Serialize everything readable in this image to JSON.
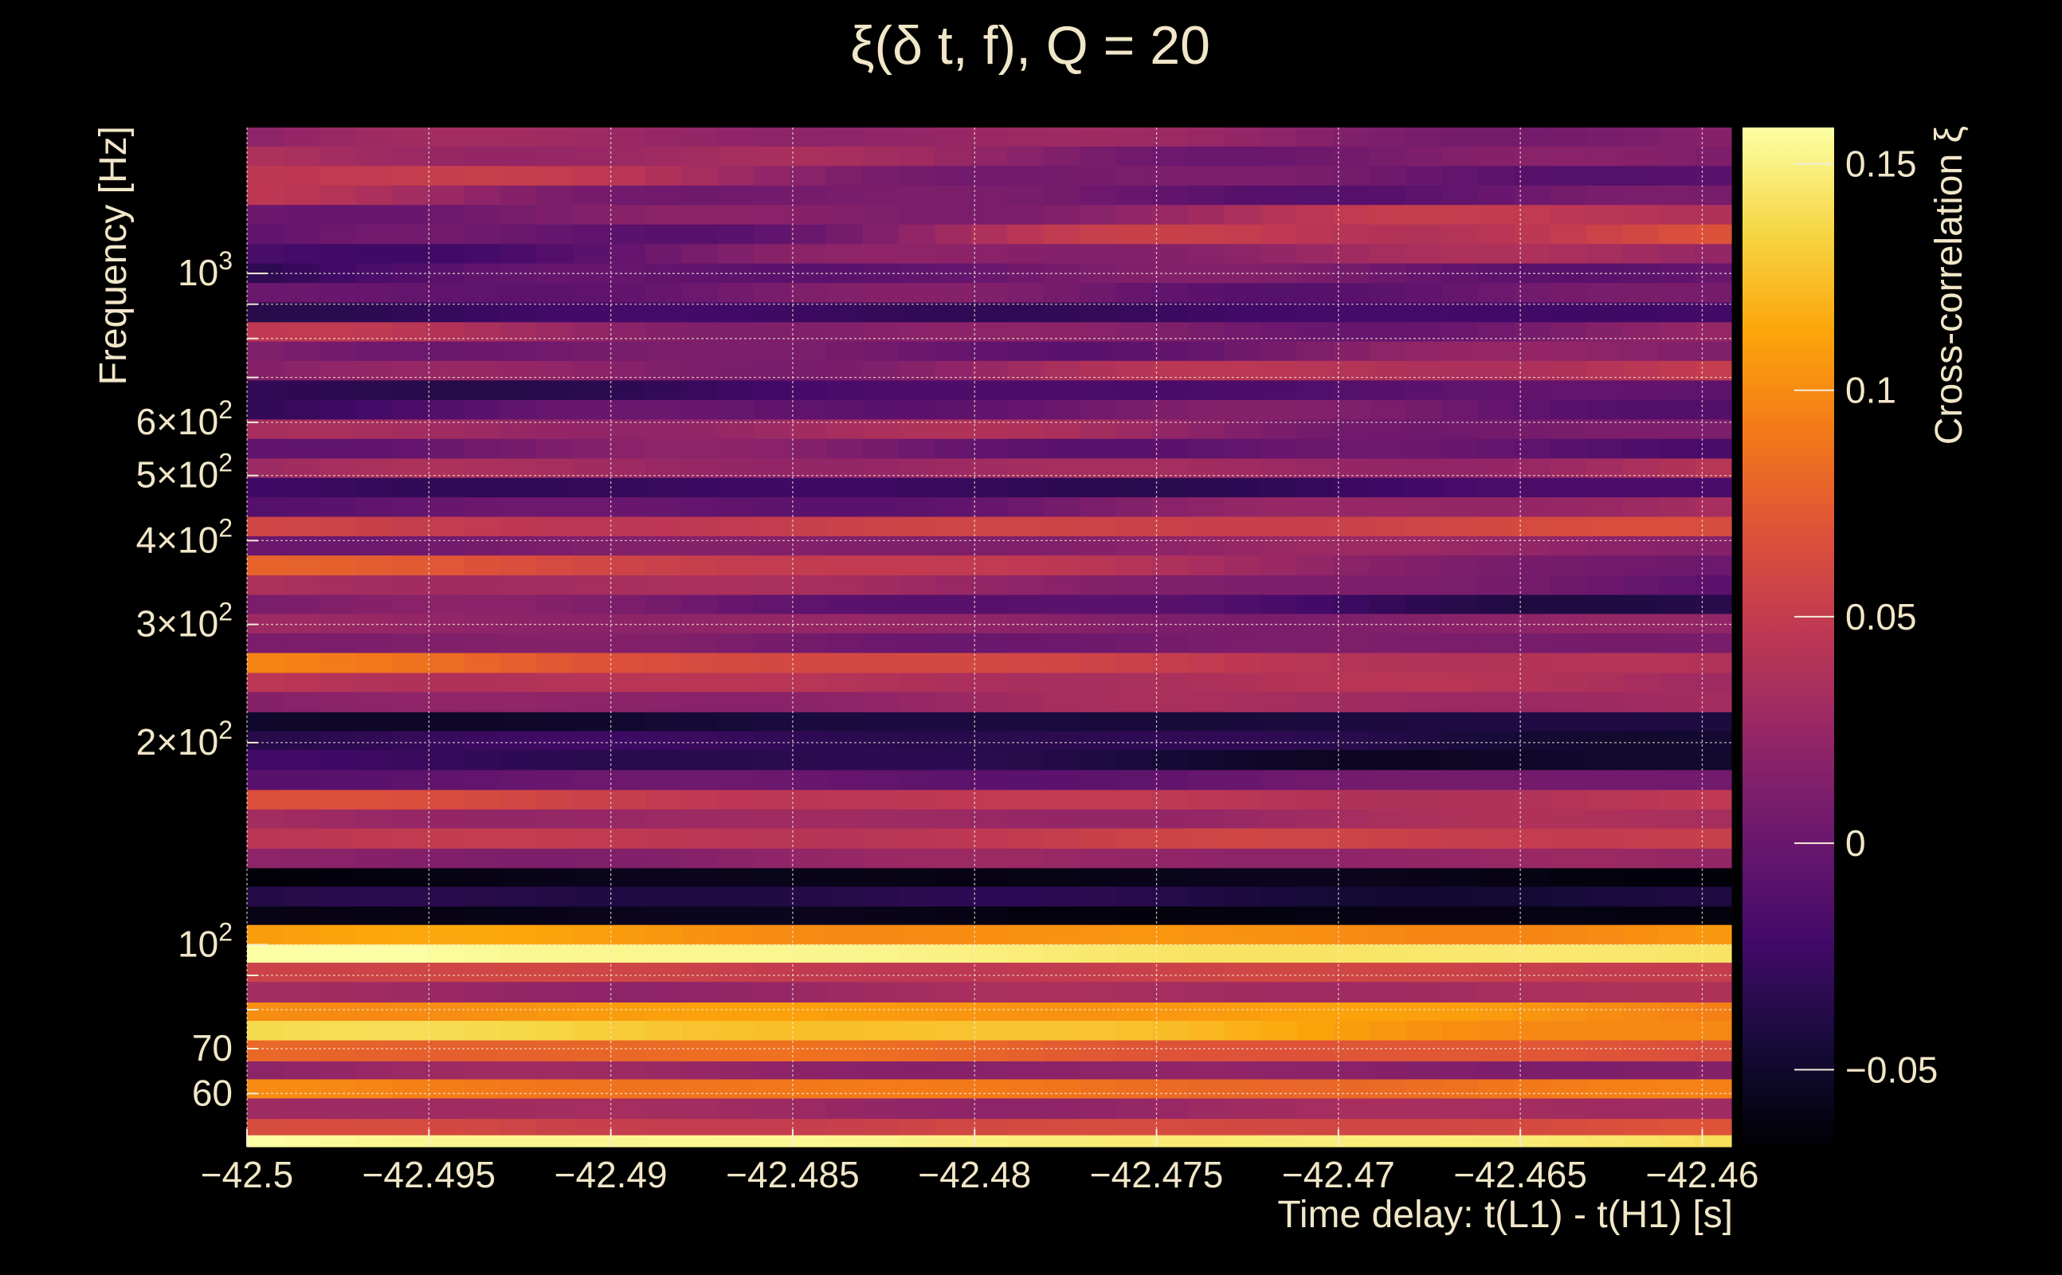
{
  "chart_data": {
    "type": "heatmap",
    "title": "ξ(δ t, f), Q = 20",
    "xlabel": "Time delay: t(L1) - t(H1) [s]",
    "ylabel": "Frequency [Hz]",
    "colorbar_label": "Cross-correlation ξ",
    "xlim": [
      -42.5,
      -42.4592
    ],
    "ylim": [
      50,
      1650
    ],
    "yscale": "log",
    "clim": [
      -0.067,
      0.158
    ],
    "colormap": "inferno",
    "x_ticks": [
      -42.5,
      -42.495,
      -42.49,
      -42.485,
      -42.48,
      -42.475,
      -42.47,
      -42.465,
      -42.46
    ],
    "x_tick_labels": [
      "−42.5",
      "−42.495",
      "−42.49",
      "−42.485",
      "−42.48",
      "−42.475",
      "−42.47",
      "−42.465",
      "−42.46"
    ],
    "y_ticks": [
      {
        "value": 60,
        "base": "60",
        "exp": ""
      },
      {
        "value": 70,
        "base": "70",
        "exp": ""
      },
      {
        "value": 100,
        "base": "10",
        "exp": "2"
      },
      {
        "value": 200,
        "base": "2×10",
        "exp": "2"
      },
      {
        "value": 300,
        "base": "3×10",
        "exp": "2"
      },
      {
        "value": 400,
        "base": "4×10",
        "exp": "2"
      },
      {
        "value": 500,
        "base": "5×10",
        "exp": "2"
      },
      {
        "value": 600,
        "base": "6×10",
        "exp": "2"
      },
      {
        "value": 1000,
        "base": "10",
        "exp": "3"
      }
    ],
    "colorbar_ticks": [
      -0.05,
      0,
      0.05,
      0.1,
      0.15
    ],
    "colorbar_tick_labels": [
      "−0.05",
      "0",
      "0.05",
      "0.1",
      "0.15"
    ],
    "grid": true,
    "columns": 41,
    "bands": [
      {
        "f": [
          1546,
          1650
        ],
        "base": 0.02,
        "slope": 0.0,
        "wave": 0.015
      },
      {
        "f": [
          1446,
          1546
        ],
        "base": 0.025,
        "slope": -0.01,
        "wave": 0.02
      },
      {
        "f": [
          1352,
          1446
        ],
        "base": 0.045,
        "slope": -0.05,
        "wave": 0.02
      },
      {
        "f": [
          1265,
          1352
        ],
        "base": 0.03,
        "slope": -0.04,
        "wave": 0.02
      },
      {
        "f": [
          1183,
          1265
        ],
        "base": 0.01,
        "slope": 0.03,
        "wave": 0.02
      },
      {
        "f": [
          1106,
          1183
        ],
        "base": 0.0,
        "slope": 0.05,
        "wave": 0.03
      },
      {
        "f": [
          1035,
          1106
        ],
        "base": -0.01,
        "slope": 0.04,
        "wave": 0.02
      },
      {
        "f": [
          968,
          1035
        ],
        "base": -0.02,
        "slope": 0.03,
        "wave": 0.02
      },
      {
        "f": [
          905,
          968
        ],
        "base": -0.01,
        "slope": 0.02,
        "wave": 0.02
      },
      {
        "f": [
          846,
          905
        ],
        "base": -0.035,
        "slope": 0.02,
        "wave": 0.01
      },
      {
        "f": [
          792,
          846
        ],
        "base": 0.03,
        "slope": -0.02,
        "wave": 0.02
      },
      {
        "f": [
          741,
          792
        ],
        "base": 0.01,
        "slope": 0.0,
        "wave": 0.02
      },
      {
        "f": [
          693,
          741
        ],
        "base": 0.02,
        "slope": 0.02,
        "wave": 0.02
      },
      {
        "f": [
          648,
          693
        ],
        "base": -0.03,
        "slope": 0.02,
        "wave": 0.01
      },
      {
        "f": [
          606,
          648
        ],
        "base": -0.01,
        "slope": 0.01,
        "wave": 0.02
      },
      {
        "f": [
          567,
          606
        ],
        "base": 0.03,
        "slope": -0.02,
        "wave": 0.02
      },
      {
        "f": [
          530,
          567
        ],
        "base": 0.0,
        "slope": 0.0,
        "wave": 0.02
      },
      {
        "f": [
          496,
          530
        ],
        "base": 0.02,
        "slope": 0.02,
        "wave": 0.015
      },
      {
        "f": [
          464,
          496
        ],
        "base": -0.03,
        "slope": 0.01,
        "wave": 0.01
      },
      {
        "f": [
          434,
          464
        ],
        "base": -0.01,
        "slope": 0.04,
        "wave": 0.015
      },
      {
        "f": [
          406,
          434
        ],
        "base": 0.055,
        "slope": 0.0,
        "wave": 0.01
      },
      {
        "f": [
          380,
          406
        ],
        "base": 0.01,
        "slope": 0.01,
        "wave": 0.01
      },
      {
        "f": [
          355,
          380
        ],
        "base": 0.08,
        "slope": -0.08,
        "wave": 0.01
      },
      {
        "f": [
          332,
          355
        ],
        "base": 0.04,
        "slope": -0.04,
        "wave": 0.01
      },
      {
        "f": [
          311,
          332
        ],
        "base": 0.01,
        "slope": -0.04,
        "wave": 0.015
      },
      {
        "f": [
          291,
          311
        ],
        "base": 0.02,
        "slope": 0.0,
        "wave": 0.01
      },
      {
        "f": [
          272,
          291
        ],
        "base": 0.01,
        "slope": 0.0,
        "wave": 0.01
      },
      {
        "f": [
          254,
          272
        ],
        "base": 0.09,
        "slope": -0.06,
        "wave": 0.01
      },
      {
        "f": [
          238,
          254
        ],
        "base": 0.05,
        "slope": -0.02,
        "wave": 0.01
      },
      {
        "f": [
          222,
          238
        ],
        "base": 0.02,
        "slope": 0.01,
        "wave": 0.01
      },
      {
        "f": [
          208,
          222
        ],
        "base": -0.05,
        "slope": 0.01,
        "wave": 0.005
      },
      {
        "f": [
          195,
          208
        ],
        "base": -0.03,
        "slope": -0.01,
        "wave": 0.01
      },
      {
        "f": [
          182,
          195
        ],
        "base": -0.03,
        "slope": -0.02,
        "wave": 0.01
      },
      {
        "f": [
          170,
          182
        ],
        "base": -0.01,
        "slope": 0.02,
        "wave": 0.01
      },
      {
        "f": [
          159,
          170
        ],
        "base": 0.06,
        "slope": -0.02,
        "wave": 0.01
      },
      {
        "f": [
          149,
          159
        ],
        "base": 0.03,
        "slope": 0.0,
        "wave": 0.01
      },
      {
        "f": [
          139,
          149
        ],
        "base": 0.05,
        "slope": 0.0,
        "wave": 0.01
      },
      {
        "f": [
          130,
          139
        ],
        "base": 0.02,
        "slope": 0.0,
        "wave": 0.01
      },
      {
        "f": [
          122,
          130
        ],
        "base": -0.06,
        "slope": 0.0,
        "wave": 0.005
      },
      {
        "f": [
          114,
          122
        ],
        "base": -0.04,
        "slope": 0.0,
        "wave": 0.01
      },
      {
        "f": [
          107,
          114
        ],
        "base": -0.06,
        "slope": 0.0,
        "wave": 0.005
      },
      {
        "f": [
          100,
          107
        ],
        "base": 0.105,
        "slope": 0.0,
        "wave": 0.01
      },
      {
        "f": [
          94,
          100
        ],
        "base": 0.16,
        "slope": -0.02,
        "wave": 0.005
      },
      {
        "f": [
          88,
          94
        ],
        "base": 0.06,
        "slope": -0.01,
        "wave": 0.01
      },
      {
        "f": [
          82,
          88
        ],
        "base": 0.03,
        "slope": 0.0,
        "wave": 0.01
      },
      {
        "f": [
          77,
          82
        ],
        "base": 0.11,
        "slope": -0.01,
        "wave": 0.01
      },
      {
        "f": [
          72,
          77
        ],
        "base": 0.14,
        "slope": -0.04,
        "wave": 0.01
      },
      {
        "f": [
          67,
          72
        ],
        "base": 0.08,
        "slope": -0.01,
        "wave": 0.01
      },
      {
        "f": [
          63,
          67
        ],
        "base": 0.02,
        "slope": 0.0,
        "wave": 0.01
      },
      {
        "f": [
          59,
          63
        ],
        "base": 0.09,
        "slope": 0.0,
        "wave": 0.01
      },
      {
        "f": [
          55,
          59
        ],
        "base": 0.03,
        "slope": 0.0,
        "wave": 0.01
      },
      {
        "f": [
          52,
          55
        ],
        "base": 0.06,
        "slope": 0.0,
        "wave": 0.01
      },
      {
        "f": [
          50,
          52
        ],
        "base": 0.16,
        "slope": -0.02,
        "wave": 0.005
      }
    ]
  }
}
